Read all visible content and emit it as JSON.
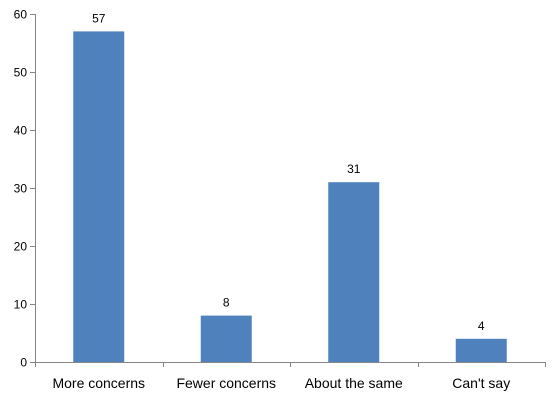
{
  "chart_data": {
    "type": "bar",
    "categories": [
      "More concerns",
      "Fewer concerns",
      "About the same",
      "Can't say"
    ],
    "values": [
      57,
      8,
      31,
      4
    ],
    "data_labels": [
      "57",
      "8",
      "31",
      "4"
    ],
    "title": "",
    "xlabel": "",
    "ylabel": "",
    "ylim": [
      0,
      60
    ],
    "yticks": [
      0,
      10,
      20,
      30,
      40,
      50,
      60
    ],
    "ytick_labels": [
      "0",
      "10",
      "20",
      "30",
      "40",
      "50",
      "60"
    ],
    "grid": false,
    "legend": "none",
    "bar_color": "#4F81BD",
    "axis_color": "#868686"
  }
}
